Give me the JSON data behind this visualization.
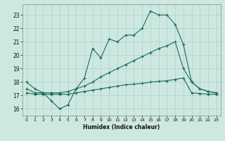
{
  "title": "",
  "xlabel": "Humidex (Indice chaleur)",
  "bg_color": "#cde8e0",
  "grid_color": "#b0d0c8",
  "line_color": "#1a6b5a",
  "xlim": [
    -0.5,
    23.5
  ],
  "ylim": [
    15.5,
    23.8
  ],
  "xticks": [
    0,
    1,
    2,
    3,
    4,
    5,
    6,
    7,
    8,
    9,
    10,
    11,
    12,
    13,
    14,
    15,
    16,
    17,
    18,
    19,
    20,
    21,
    22,
    23
  ],
  "yticks": [
    16,
    17,
    18,
    19,
    20,
    21,
    22,
    23
  ],
  "line1_x": [
    0,
    1,
    2,
    3,
    4,
    5,
    6,
    7,
    8,
    9,
    10,
    11,
    12,
    13,
    14,
    15,
    16,
    17,
    18,
    19,
    20,
    21,
    22,
    23
  ],
  "line1_y": [
    18.0,
    17.5,
    17.2,
    16.6,
    16.0,
    16.3,
    17.5,
    18.3,
    20.5,
    19.8,
    21.2,
    21.0,
    21.5,
    21.5,
    22.0,
    23.3,
    23.0,
    23.0,
    22.3,
    20.8,
    18.0,
    17.5,
    17.3,
    17.2
  ],
  "line2_x": [
    0,
    1,
    2,
    3,
    4,
    5,
    6,
    7,
    8,
    9,
    10,
    11,
    12,
    13,
    14,
    15,
    16,
    17,
    18,
    19,
    20,
    21,
    22,
    23
  ],
  "line2_y": [
    17.5,
    17.2,
    17.2,
    17.2,
    17.2,
    17.3,
    17.5,
    17.7,
    18.0,
    18.4,
    18.7,
    19.0,
    19.3,
    19.6,
    19.9,
    20.2,
    20.5,
    20.7,
    21.0,
    19.0,
    18.0,
    17.5,
    17.3,
    17.2
  ],
  "line3_x": [
    0,
    1,
    2,
    3,
    4,
    5,
    6,
    7,
    8,
    9,
    10,
    11,
    12,
    13,
    14,
    15,
    16,
    17,
    18,
    19,
    20,
    21,
    22,
    23
  ],
  "line3_y": [
    17.2,
    17.1,
    17.1,
    17.1,
    17.1,
    17.1,
    17.2,
    17.3,
    17.4,
    17.5,
    17.6,
    17.7,
    17.8,
    17.85,
    17.9,
    18.0,
    18.05,
    18.1,
    18.2,
    18.3,
    17.2,
    17.15,
    17.1,
    17.1
  ]
}
